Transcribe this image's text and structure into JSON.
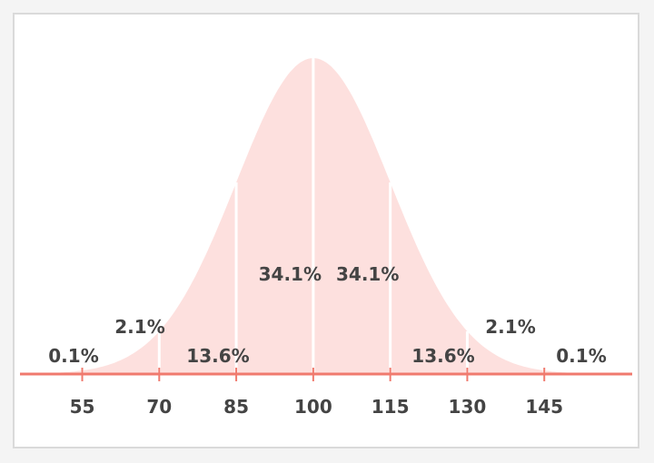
{
  "chart_data": {
    "type": "area",
    "title": "",
    "xlabel": "",
    "ylabel": "",
    "distribution": {
      "mean": 100,
      "sd": 15
    },
    "xlim": [
      45,
      160
    ],
    "ticks": [
      55,
      70,
      85,
      100,
      115,
      130,
      145
    ],
    "tick_labels": [
      "55",
      "70",
      "85",
      "100",
      "115",
      "130",
      "145"
    ],
    "regions": [
      {
        "label": "0.1%",
        "from": 45,
        "to": 55
      },
      {
        "label": "2.1%",
        "from": 55,
        "to": 70
      },
      {
        "label": "13.6%",
        "from": 70,
        "to": 85
      },
      {
        "label": "34.1%",
        "from": 85,
        "to": 100
      },
      {
        "label": "34.1%",
        "from": 100,
        "to": 115
      },
      {
        "label": "13.6%",
        "from": 115,
        "to": 130
      },
      {
        "label": "2.1%",
        "from": 130,
        "to": 145
      },
      {
        "label": "0.1%",
        "from": 145,
        "to": 160
      }
    ],
    "colors": {
      "fill": "#fde0de",
      "axis": "#f07a6e",
      "divider": "#ffffff",
      "text": "#444444"
    }
  }
}
